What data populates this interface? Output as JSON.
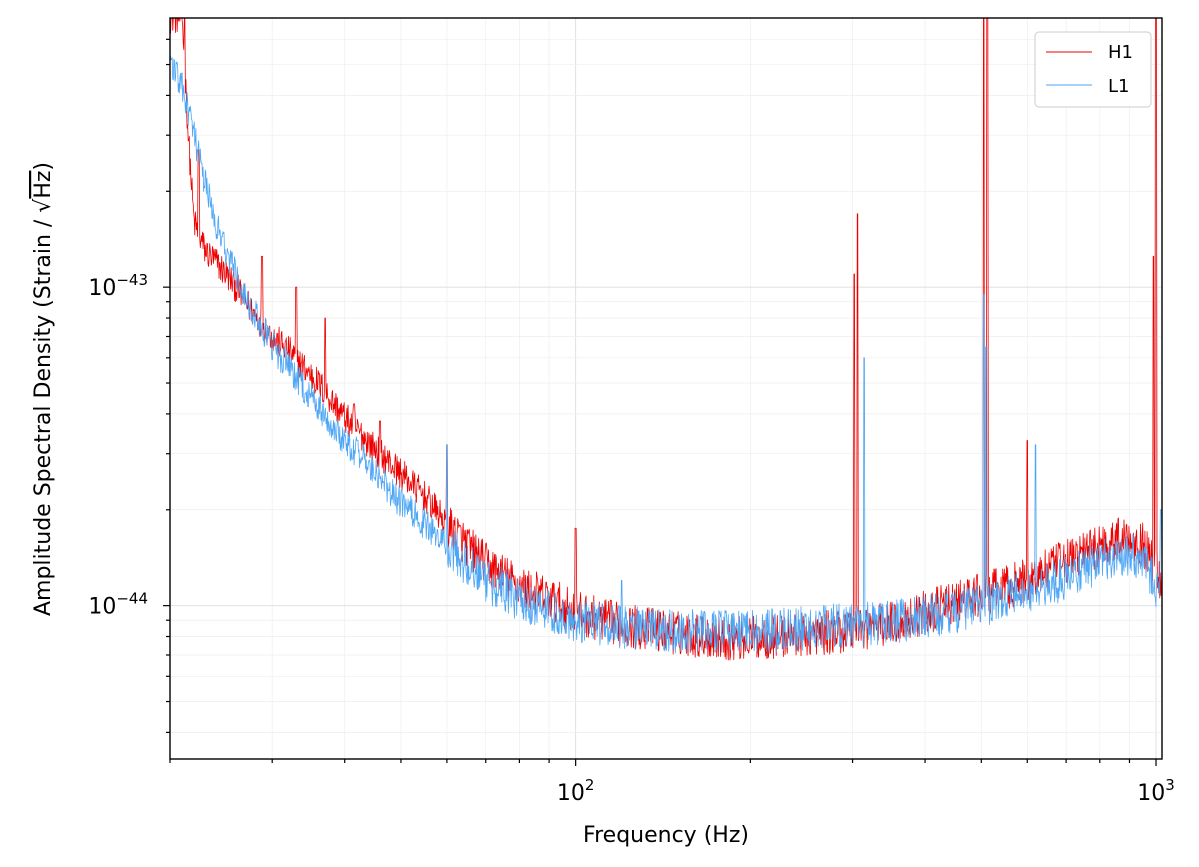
{
  "chart_data": {
    "type": "line",
    "title": "",
    "xlabel": "Frequency (Hz)",
    "ylabel_prefix": "Amplitude Spectral Density (Strain / ",
    "ylabel_sqrt_symbol": "√",
    "ylabel_sqrt_arg": "Hz",
    "ylabel_suffix": ")",
    "xscale": "log",
    "yscale": "log",
    "xlim": [
      20,
      1024
    ],
    "ylim": [
      3.3e-45,
      7e-43
    ],
    "grid": true,
    "legend_position": "top-right",
    "x_major_ticks": [
      {
        "value": 100,
        "base": "10",
        "exp": "2"
      },
      {
        "value": 1000,
        "base": "10",
        "exp": "3"
      }
    ],
    "y_major_ticks": [
      {
        "value": 1e-44,
        "base": "10",
        "exp": "−44"
      },
      {
        "value": 1e-43,
        "base": "10",
        "exp": "−43"
      }
    ],
    "series": [
      {
        "name": "H1",
        "color": "#ee0000",
        "points": [
          [
            20,
            7e-43
          ],
          [
            21,
            7e-43
          ],
          [
            21.5,
            3e-43
          ],
          [
            22,
            1.6e-43
          ],
          [
            23,
            1.3e-43
          ],
          [
            24,
            1.2e-43
          ],
          [
            25,
            1.1e-43
          ],
          [
            26,
            1e-43
          ],
          [
            27,
            9e-44
          ],
          [
            28,
            8.2e-44
          ],
          [
            29,
            7.6e-44
          ],
          [
            30,
            7e-44
          ],
          [
            32,
            6.3e-44
          ],
          [
            34,
            5.6e-44
          ],
          [
            36,
            5e-44
          ],
          [
            38,
            4.4e-44
          ],
          [
            40,
            3.9e-44
          ],
          [
            43,
            3.4e-44
          ],
          [
            46,
            3e-44
          ],
          [
            50,
            2.6e-44
          ],
          [
            55,
            2.2e-44
          ],
          [
            60,
            1.8e-44
          ],
          [
            65,
            1.55e-44
          ],
          [
            70,
            1.35e-44
          ],
          [
            80,
            1.15e-44
          ],
          [
            90,
            1.05e-44
          ],
          [
            100,
            9.5e-45
          ],
          [
            120,
            8.7e-45
          ],
          [
            150,
            8.2e-45
          ],
          [
            180,
            7.9e-45
          ],
          [
            200,
            7.9e-45
          ],
          [
            250,
            8.1e-45
          ],
          [
            300,
            8.4e-45
          ],
          [
            350,
            8.8e-45
          ],
          [
            400,
            9.5e-45
          ],
          [
            450,
            1.02e-44
          ],
          [
            500,
            1.08e-44
          ],
          [
            600,
            1.2e-44
          ],
          [
            700,
            1.38e-44
          ],
          [
            800,
            1.55e-44
          ],
          [
            900,
            1.65e-44
          ],
          [
            950,
            1.55e-44
          ],
          [
            1000,
            1.3e-44
          ],
          [
            1024,
            1.2e-44
          ]
        ]
      },
      {
        "name": "L1",
        "color": "#4da6f5",
        "points": [
          [
            20,
            5.2e-43
          ],
          [
            21,
            4.2e-43
          ],
          [
            22,
            3e-43
          ],
          [
            23,
            2.1e-43
          ],
          [
            24,
            1.6e-43
          ],
          [
            25,
            1.3e-43
          ],
          [
            26,
            1.1e-43
          ],
          [
            27,
            9.4e-44
          ],
          [
            28,
            8.2e-44
          ],
          [
            29,
            7.3e-44
          ],
          [
            30,
            6.5e-44
          ],
          [
            32,
            5.6e-44
          ],
          [
            34,
            4.8e-44
          ],
          [
            36,
            4.2e-44
          ],
          [
            38,
            3.7e-44
          ],
          [
            40,
            3.3e-44
          ],
          [
            43,
            2.9e-44
          ],
          [
            46,
            2.5e-44
          ],
          [
            50,
            2.1e-44
          ],
          [
            55,
            1.8e-44
          ],
          [
            60,
            1.55e-44
          ],
          [
            65,
            1.35e-44
          ],
          [
            70,
            1.2e-44
          ],
          [
            80,
            1.05e-44
          ],
          [
            90,
            9.6e-45
          ],
          [
            100,
            9e-45
          ],
          [
            120,
            8.5e-45
          ],
          [
            150,
            8.3e-45
          ],
          [
            200,
            8.3e-45
          ],
          [
            250,
            8.5e-45
          ],
          [
            300,
            8.7e-45
          ],
          [
            350,
            8.9e-45
          ],
          [
            400,
            9.2e-45
          ],
          [
            450,
            9.6e-45
          ],
          [
            500,
            1e-44
          ],
          [
            600,
            1.1e-44
          ],
          [
            700,
            1.22e-44
          ],
          [
            800,
            1.38e-44
          ],
          [
            900,
            1.45e-44
          ],
          [
            950,
            1.35e-44
          ],
          [
            1000,
            1.15e-44
          ],
          [
            1024,
            1.05e-44
          ]
        ]
      }
    ],
    "spikes": [
      {
        "series": "H1",
        "x": 21.2,
        "y": 7e-43
      },
      {
        "series": "H1",
        "x": 22.4,
        "y": 2.7e-43
      },
      {
        "series": "H1",
        "x": 28.8,
        "y": 1.25e-43
      },
      {
        "series": "H1",
        "x": 33.0,
        "y": 1e-43
      },
      {
        "series": "H1",
        "x": 37.0,
        "y": 8e-44
      },
      {
        "series": "H1",
        "x": 41.5,
        "y": 4.3e-44
      },
      {
        "series": "H1",
        "x": 46.0,
        "y": 3.8e-44
      },
      {
        "series": "H1",
        "x": 60.0,
        "y": 3.2e-44
      },
      {
        "series": "H1",
        "x": 100.0,
        "y": 1.75e-44
      },
      {
        "series": "H1",
        "x": 302.0,
        "y": 1.1e-43
      },
      {
        "series": "H1",
        "x": 306.0,
        "y": 1.7e-43
      },
      {
        "series": "H1",
        "x": 505.0,
        "y": 7e-43
      },
      {
        "series": "H1",
        "x": 512.0,
        "y": 7e-43
      },
      {
        "series": "H1",
        "x": 600.0,
        "y": 3.3e-44
      },
      {
        "series": "H1",
        "x": 990.0,
        "y": 1.25e-43
      },
      {
        "series": "H1",
        "x": 1000.0,
        "y": 7e-43
      },
      {
        "series": "L1",
        "x": 60.0,
        "y": 3.2e-44
      },
      {
        "series": "L1",
        "x": 120.0,
        "y": 1.2e-44
      },
      {
        "series": "L1",
        "x": 314.0,
        "y": 6e-44
      },
      {
        "series": "L1",
        "x": 505.0,
        "y": 9.5e-44
      },
      {
        "series": "L1",
        "x": 510.0,
        "y": 6.5e-44
      },
      {
        "series": "L1",
        "x": 620.0,
        "y": 3.2e-44
      },
      {
        "series": "L1",
        "x": 1020.0,
        "y": 2e-44
      }
    ]
  }
}
